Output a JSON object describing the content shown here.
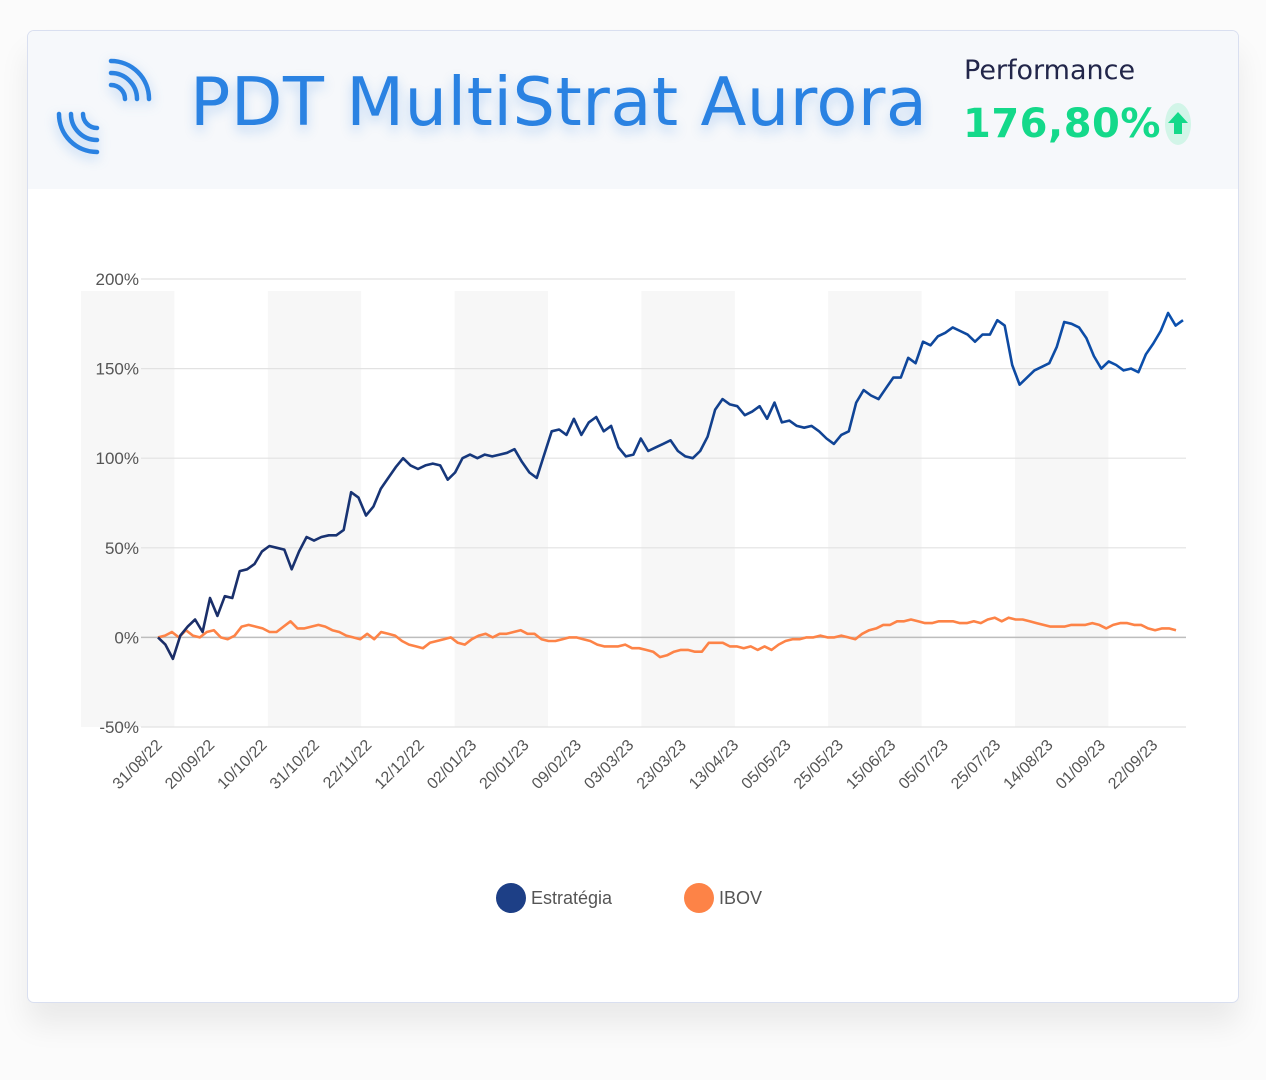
{
  "header": {
    "title": "PDT MultiStrat Aurora",
    "logo_icon": "signal-waves-icon",
    "performance_label": "Performance",
    "performance_value": "176,80%",
    "performance_icon": "arrow-up-icon"
  },
  "colors": {
    "title": "#2a82e2",
    "performance_positive": "#14d98a",
    "estrategia_start": "#1b2d66",
    "estrategia_end": "#0b50ae",
    "ibov": "#fd8347",
    "grid": "#e2e2e2",
    "zero_line": "#bdbdbd",
    "band": "#f7f7f7"
  },
  "legend": [
    {
      "label": "Estratégia",
      "color": "#1d3f86"
    },
    {
      "label": "IBOV",
      "color": "#fd8347"
    }
  ],
  "chart_data": {
    "type": "line",
    "title": "PDT MultiStrat Aurora",
    "xlabel": "",
    "ylabel": "",
    "ylim": [
      -50,
      200
    ],
    "yticks": [
      "200%",
      "150%",
      "100%",
      "50%",
      "0%",
      "-50%"
    ],
    "ytick_values": [
      200,
      150,
      100,
      50,
      0,
      -50
    ],
    "grid": true,
    "legend_position": "bottom",
    "x_tick_labels": [
      "31/08/22",
      "20/09/22",
      "10/10/22",
      "31/10/22",
      "22/11/22",
      "12/12/22",
      "02/01/23",
      "20/01/23",
      "09/02/23",
      "03/03/23",
      "23/03/23",
      "13/04/23",
      "05/05/23",
      "25/05/23",
      "15/06/23",
      "05/07/23",
      "25/07/23",
      "14/08/23",
      "01/09/23",
      "22/09/23"
    ],
    "x_index_range": [
      0,
      196
    ],
    "series": [
      {
        "name": "Estratégia",
        "x": [
          0,
          2,
          4,
          6,
          8,
          10,
          12,
          14,
          16,
          18,
          20,
          22,
          24,
          26,
          28,
          30,
          32,
          34,
          36,
          38,
          40,
          42,
          44,
          46,
          48,
          50,
          52,
          54,
          56,
          58,
          60,
          62,
          64,
          66,
          68,
          70,
          72,
          74,
          76,
          78,
          80,
          82,
          84,
          86,
          88,
          90,
          92,
          94,
          96,
          98,
          100,
          102,
          104,
          106,
          108,
          110,
          112,
          114,
          116,
          118,
          120,
          122,
          124,
          126,
          128,
          130,
          132,
          134,
          136,
          138,
          140,
          142,
          144,
          146,
          148,
          150,
          152,
          154,
          156,
          158,
          160,
          162,
          164,
          166,
          168,
          170,
          172,
          174,
          176,
          178,
          180,
          182,
          184,
          186,
          188,
          190,
          192,
          194,
          196
        ],
        "values": [
          0,
          -4,
          -12,
          1,
          6,
          10,
          3,
          22,
          12,
          23,
          22,
          37,
          38,
          41,
          48,
          51,
          50,
          49,
          38,
          48,
          56,
          54,
          56,
          57,
          57,
          60,
          81,
          78,
          68,
          73,
          83,
          89,
          95,
          100,
          96,
          94,
          96,
          97,
          96,
          88,
          92,
          100,
          102,
          100,
          102,
          101,
          102,
          103,
          105,
          98,
          92,
          89,
          102,
          115,
          116,
          113,
          122,
          113,
          120,
          123,
          115,
          118,
          106,
          101,
          102,
          111,
          104,
          106,
          108,
          110,
          104,
          101,
          100,
          104,
          112,
          127,
          133,
          130,
          129,
          124,
          126,
          129,
          122,
          131,
          120,
          121,
          118,
          117,
          118,
          115,
          111,
          108,
          113,
          115,
          131,
          138,
          135,
          133,
          139
        ],
        "values_tail": [
          145,
          145,
          156,
          153,
          165,
          163,
          168,
          170,
          173,
          171,
          169,
          165,
          169,
          169,
          177,
          174,
          152,
          141,
          145,
          149,
          151,
          153,
          162,
          176,
          175,
          173,
          167,
          157,
          150,
          154,
          152,
          149,
          150,
          148,
          158,
          164,
          171,
          181,
          174,
          177
        ]
      },
      {
        "name": "IBOV",
        "x_note": "same x scale as Estratégia",
        "values": [
          0,
          1,
          3,
          0,
          4,
          1,
          0,
          3,
          4,
          0,
          -1,
          1,
          6,
          7,
          6,
          5,
          3,
          3,
          6,
          9,
          5,
          5,
          6,
          7,
          6,
          4,
          3,
          1,
          0,
          -1,
          2,
          -1,
          3,
          2,
          1,
          -2,
          -4,
          -5,
          -6,
          -3,
          -2,
          -1,
          0,
          -3,
          -4,
          -1,
          1,
          2,
          0,
          2,
          2,
          3,
          4,
          2,
          2,
          -1,
          -2,
          -2,
          -1,
          0,
          0,
          -1,
          -2,
          -4,
          -5,
          -5,
          -5,
          -4,
          -6,
          -6,
          -7,
          -8,
          -11,
          -10,
          -8,
          -7,
          -7,
          -8,
          -8,
          -3,
          -3,
          -3,
          -5,
          -5,
          -6,
          -5,
          -7,
          -5,
          -7,
          -4,
          -2,
          -1,
          -1,
          0,
          0,
          1,
          0,
          0,
          1,
          0,
          -1,
          2,
          4,
          5,
          7,
          7,
          9,
          9,
          10,
          9,
          8,
          8,
          9,
          9,
          9,
          8,
          8,
          9,
          8,
          10,
          11,
          9,
          11,
          10,
          10,
          9,
          8,
          7,
          6,
          6,
          6,
          7,
          7,
          7,
          8,
          7,
          5,
          7,
          8,
          8,
          7,
          7,
          5,
          4,
          5,
          5,
          4
        ]
      }
    ]
  }
}
